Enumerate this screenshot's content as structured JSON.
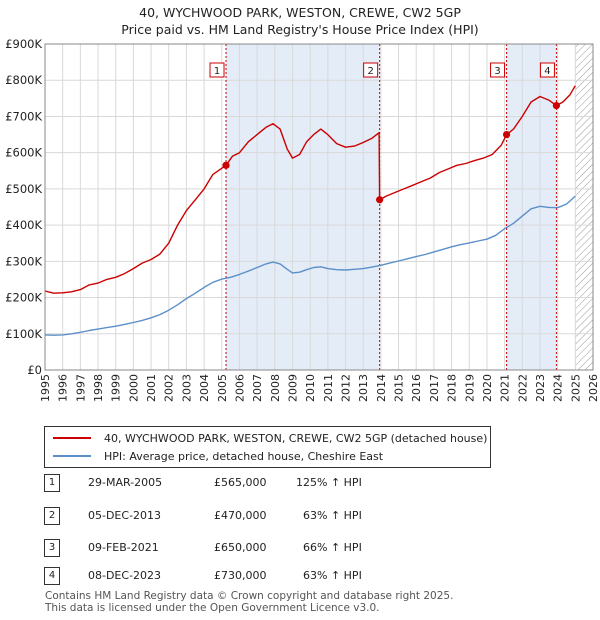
{
  "title": "40, WYCHWOOD PARK, WESTON, CREWE, CW2 5GP",
  "subtitle": "Price paid vs. HM Land Registry's House Price Index (HPI)",
  "chart_data": {
    "type": "line",
    "xlim": [
      1995,
      2026
    ],
    "ylim": [
      0,
      900000
    ],
    "yticks": [
      0,
      100000,
      200000,
      300000,
      400000,
      500000,
      600000,
      700000,
      800000,
      900000
    ],
    "ytick_labels": [
      "£0",
      "£100K",
      "£200K",
      "£300K",
      "£400K",
      "£500K",
      "£600K",
      "£700K",
      "£800K",
      "£900K"
    ],
    "xticks": [
      "1995",
      "1996",
      "1997",
      "1998",
      "1999",
      "2000",
      "2001",
      "2002",
      "2003",
      "2004",
      "2005",
      "2006",
      "2007",
      "2008",
      "2009",
      "2010",
      "2011",
      "2012",
      "2013",
      "2014",
      "2015",
      "2016",
      "2017",
      "2018",
      "2019",
      "2020",
      "2021",
      "2022",
      "2023",
      "2024",
      "2025",
      "2026"
    ],
    "grid": true,
    "hatched_from": 2025.0,
    "series": [
      {
        "name": "40, WYCHWOOD PARK, WESTON, CREWE, CW2 5GP (detached house)",
        "color": "#cc0000",
        "points": [
          [
            1995.0,
            218000
          ],
          [
            1995.5,
            212000
          ],
          [
            1996.0,
            213000
          ],
          [
            1996.5,
            216000
          ],
          [
            1997.0,
            222000
          ],
          [
            1997.5,
            235000
          ],
          [
            1998.0,
            240000
          ],
          [
            1998.5,
            250000
          ],
          [
            1999.0,
            256000
          ],
          [
            1999.5,
            266000
          ],
          [
            2000.0,
            280000
          ],
          [
            2000.5,
            295000
          ],
          [
            2001.0,
            305000
          ],
          [
            2001.5,
            320000
          ],
          [
            2002.0,
            350000
          ],
          [
            2002.5,
            400000
          ],
          [
            2003.0,
            440000
          ],
          [
            2003.5,
            470000
          ],
          [
            2004.0,
            500000
          ],
          [
            2004.5,
            540000
          ],
          [
            2005.24,
            565000
          ],
          [
            2005.6,
            590000
          ],
          [
            2006.0,
            600000
          ],
          [
            2006.5,
            630000
          ],
          [
            2007.0,
            650000
          ],
          [
            2007.5,
            670000
          ],
          [
            2007.9,
            680000
          ],
          [
            2008.3,
            665000
          ],
          [
            2008.7,
            610000
          ],
          [
            2009.0,
            585000
          ],
          [
            2009.4,
            595000
          ],
          [
            2009.8,
            630000
          ],
          [
            2010.2,
            650000
          ],
          [
            2010.6,
            665000
          ],
          [
            2011.0,
            650000
          ],
          [
            2011.5,
            625000
          ],
          [
            2012.0,
            615000
          ],
          [
            2012.5,
            618000
          ],
          [
            2013.0,
            628000
          ],
          [
            2013.5,
            640000
          ],
          [
            2013.9,
            655000
          ],
          [
            2013.93,
            470000
          ],
          [
            2014.3,
            480000
          ],
          [
            2014.8,
            490000
          ],
          [
            2015.3,
            500000
          ],
          [
            2015.8,
            510000
          ],
          [
            2016.3,
            520000
          ],
          [
            2016.8,
            530000
          ],
          [
            2017.3,
            545000
          ],
          [
            2017.8,
            555000
          ],
          [
            2018.3,
            565000
          ],
          [
            2018.8,
            570000
          ],
          [
            2019.3,
            578000
          ],
          [
            2019.8,
            585000
          ],
          [
            2020.3,
            595000
          ],
          [
            2020.8,
            620000
          ],
          [
            2021.11,
            650000
          ],
          [
            2021.5,
            665000
          ],
          [
            2022.0,
            700000
          ],
          [
            2022.5,
            740000
          ],
          [
            2023.0,
            755000
          ],
          [
            2023.5,
            745000
          ],
          [
            2023.93,
            730000
          ],
          [
            2024.3,
            740000
          ],
          [
            2024.7,
            760000
          ],
          [
            2025.0,
            785000
          ]
        ]
      },
      {
        "name": "HPI: Average price, detached house, Cheshire East",
        "color": "#5b8fc9",
        "points": [
          [
            1995.0,
            97000
          ],
          [
            1995.5,
            96000
          ],
          [
            1996.0,
            97000
          ],
          [
            1996.5,
            100000
          ],
          [
            1997.0,
            104000
          ],
          [
            1997.5,
            109000
          ],
          [
            1998.0,
            113000
          ],
          [
            1998.5,
            117000
          ],
          [
            1999.0,
            121000
          ],
          [
            1999.5,
            126000
          ],
          [
            2000.0,
            131000
          ],
          [
            2000.5,
            137000
          ],
          [
            2001.0,
            144000
          ],
          [
            2001.5,
            153000
          ],
          [
            2002.0,
            165000
          ],
          [
            2002.5,
            180000
          ],
          [
            2003.0,
            197000
          ],
          [
            2003.5,
            212000
          ],
          [
            2004.0,
            228000
          ],
          [
            2004.5,
            242000
          ],
          [
            2005.0,
            251000
          ],
          [
            2005.5,
            256000
          ],
          [
            2006.0,
            264000
          ],
          [
            2006.5,
            273000
          ],
          [
            2007.0,
            283000
          ],
          [
            2007.5,
            293000
          ],
          [
            2007.9,
            298000
          ],
          [
            2008.3,
            293000
          ],
          [
            2008.7,
            278000
          ],
          [
            2009.0,
            268000
          ],
          [
            2009.4,
            270000
          ],
          [
            2009.8,
            277000
          ],
          [
            2010.2,
            283000
          ],
          [
            2010.6,
            285000
          ],
          [
            2011.0,
            280000
          ],
          [
            2011.5,
            277000
          ],
          [
            2012.0,
            276000
          ],
          [
            2012.5,
            278000
          ],
          [
            2013.0,
            280000
          ],
          [
            2013.5,
            284000
          ],
          [
            2014.0,
            289000
          ],
          [
            2014.5,
            295000
          ],
          [
            2015.0,
            301000
          ],
          [
            2015.5,
            307000
          ],
          [
            2016.0,
            313000
          ],
          [
            2016.5,
            319000
          ],
          [
            2017.0,
            326000
          ],
          [
            2017.5,
            333000
          ],
          [
            2018.0,
            340000
          ],
          [
            2018.5,
            346000
          ],
          [
            2019.0,
            351000
          ],
          [
            2019.5,
            356000
          ],
          [
            2020.0,
            361000
          ],
          [
            2020.5,
            372000
          ],
          [
            2021.0,
            390000
          ],
          [
            2021.5,
            405000
          ],
          [
            2022.0,
            425000
          ],
          [
            2022.5,
            445000
          ],
          [
            2023.0,
            452000
          ],
          [
            2023.5,
            449000
          ],
          [
            2024.0,
            448000
          ],
          [
            2024.5,
            458000
          ],
          [
            2025.0,
            480000
          ]
        ]
      }
    ],
    "sales": [
      {
        "label": "1",
        "date": "29-MAR-2005",
        "x": 2005.24,
        "price": 565000,
        "price_text": "£565,000",
        "hpi": "125% ↑ HPI"
      },
      {
        "label": "2",
        "date": "05-DEC-2013",
        "x": 2013.93,
        "price": 470000,
        "price_text": "£470,000",
        "hpi": "63% ↑ HPI"
      },
      {
        "label": "3",
        "date": "09-FEB-2021",
        "x": 2021.11,
        "price": 650000,
        "price_text": "£650,000",
        "hpi": "66% ↑ HPI"
      },
      {
        "label": "4",
        "date": "08-DEC-2023",
        "x": 2023.93,
        "price": 730000,
        "price_text": "£730,000",
        "hpi": "63% ↑ HPI"
      }
    ]
  },
  "legend": {
    "items": [
      {
        "label": "40, WYCHWOOD PARK, WESTON, CREWE, CW2 5GP (detached house)",
        "color": "#cc0000"
      },
      {
        "label": "HPI: Average price, detached house, Cheshire East",
        "color": "#5b8fc9"
      }
    ]
  },
  "footer": {
    "line1": "Contains HM Land Registry data © Crown copyright and database right 2025.",
    "line2": "This data is licensed under the Open Government Licence v3.0."
  }
}
